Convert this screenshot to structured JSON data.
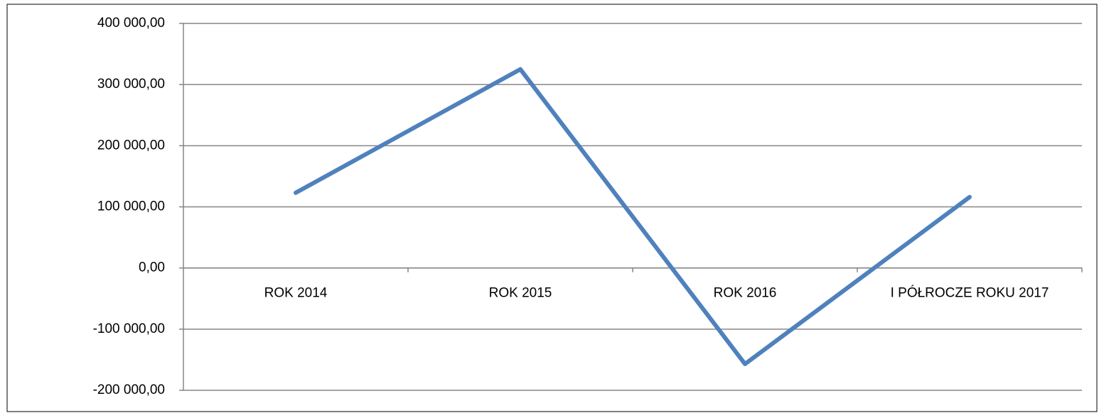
{
  "chart_data": {
    "type": "line",
    "categories": [
      "ROK 2014",
      "ROK 2015",
      "ROK 2016",
      "I PÓŁROCZE ROKU 2017"
    ],
    "series": [
      {
        "color": "#4f81bd",
        "values": [
          123000,
          325000,
          -157000,
          116000
        ]
      }
    ],
    "ylim": [
      -200000,
      400000
    ],
    "yticks": [
      {
        "value": -200000,
        "label": "-200 000,00"
      },
      {
        "value": -100000,
        "label": "-100 000,00"
      },
      {
        "value": 0,
        "label": "0,00"
      },
      {
        "value": 100000,
        "label": "100 000,00"
      },
      {
        "value": 200000,
        "label": "200 000,00"
      },
      {
        "value": 300000,
        "label": "300 000,00"
      },
      {
        "value": 400000,
        "label": "400 000,00"
      }
    ],
    "grid": true
  }
}
